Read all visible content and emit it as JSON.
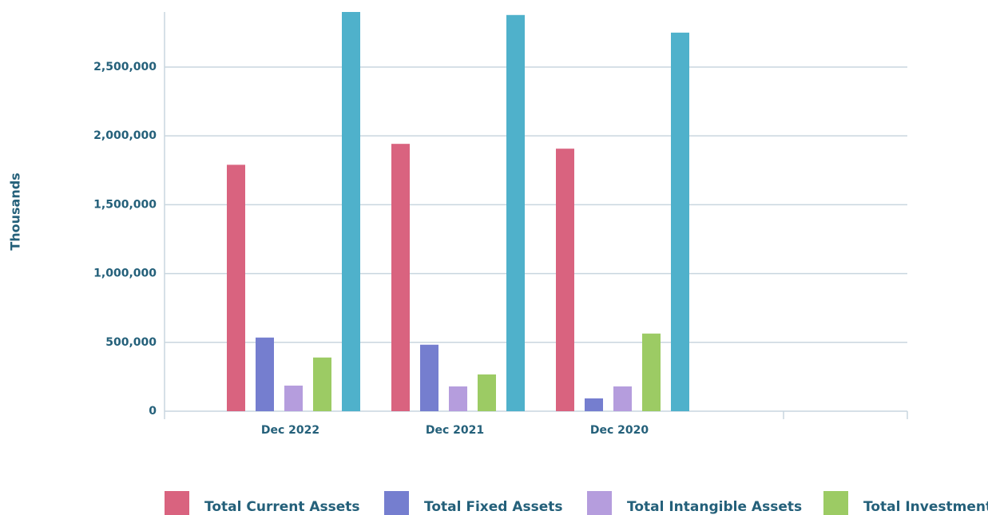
{
  "chart_data": {
    "type": "bar",
    "y_label": "Thousands",
    "categories": [
      "Dec 2022",
      "Dec 2021",
      "Dec 2020"
    ],
    "series": [
      {
        "name": "Total Current Assets",
        "color": "#d9637f",
        "values": [
          1790000,
          1942000,
          1907000
        ]
      },
      {
        "name": "Total Fixed Assets",
        "color": "#757ecf",
        "values": [
          535000,
          483000,
          93000
        ]
      },
      {
        "name": "Total Intangible Assets",
        "color": "#b59ddd",
        "values": [
          186000,
          180000,
          180000
        ]
      },
      {
        "name": "Total Investment",
        "color": "#9ccb64",
        "values": [
          390000,
          267000,
          564000
        ]
      },
      {
        "color": "#4fb1cb",
        "values": [
          2900000,
          2878000,
          2750000
        ]
      }
    ],
    "ylim": [
      0,
      2900000
    ],
    "yticks": [
      0,
      {
        "value": 500000,
        "label": "500,000"
      },
      {
        "value": 1000000,
        "label": "1,000,000"
      },
      {
        "value": 1500000,
        "label": "1,500,000"
      },
      {
        "value": 2000000,
        "label": "2,000,000"
      },
      {
        "value": 2500000,
        "label": "2,500,000"
      }
    ],
    "grid": true
  }
}
